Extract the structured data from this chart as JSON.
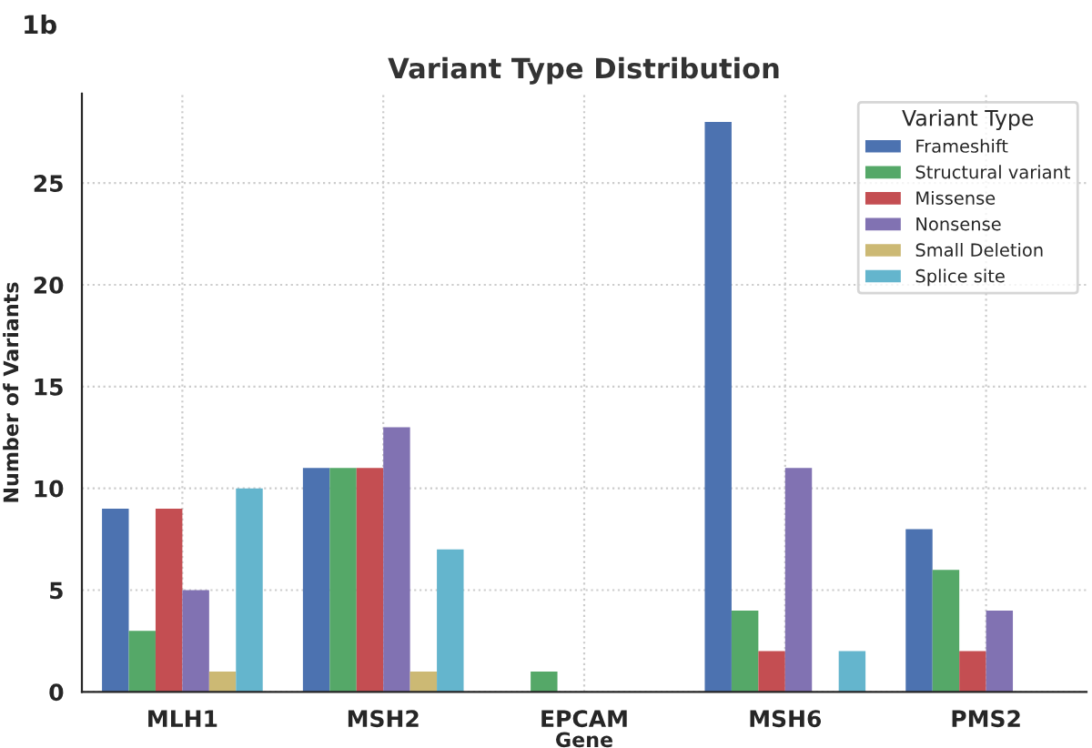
{
  "chart_data": {
    "type": "bar",
    "title": "Variant Type Distribution",
    "xlabel": "Gene",
    "ylabel": "Number of Variants",
    "legend_title": "Variant Type",
    "annotations": [
      "1b"
    ],
    "categories": [
      "MLH1",
      "MSH2",
      "EPCAM",
      "MSH6",
      "PMS2"
    ],
    "series": [
      {
        "name": "Frameshift",
        "color": "#4c72b0",
        "values": [
          9,
          11,
          0,
          28,
          8
        ]
      },
      {
        "name": "Structural variant",
        "color": "#55a868",
        "values": [
          3,
          11,
          1,
          4,
          6
        ]
      },
      {
        "name": "Missense",
        "color": "#c44e52",
        "values": [
          9,
          11,
          0,
          2,
          2
        ]
      },
      {
        "name": "Nonsense",
        "color": "#8172b2",
        "values": [
          5,
          13,
          0,
          11,
          4
        ]
      },
      {
        "name": "Small Deletion",
        "color": "#ccb974",
        "values": [
          1,
          1,
          0,
          0,
          0
        ]
      },
      {
        "name": "Splice site",
        "color": "#64b5cd",
        "values": [
          10,
          7,
          0,
          2,
          0
        ]
      }
    ],
    "ylim": [
      0,
      29.4
    ],
    "yticks": [
      0,
      5,
      10,
      15,
      20,
      25
    ],
    "grid": true,
    "legend": "top right"
  }
}
